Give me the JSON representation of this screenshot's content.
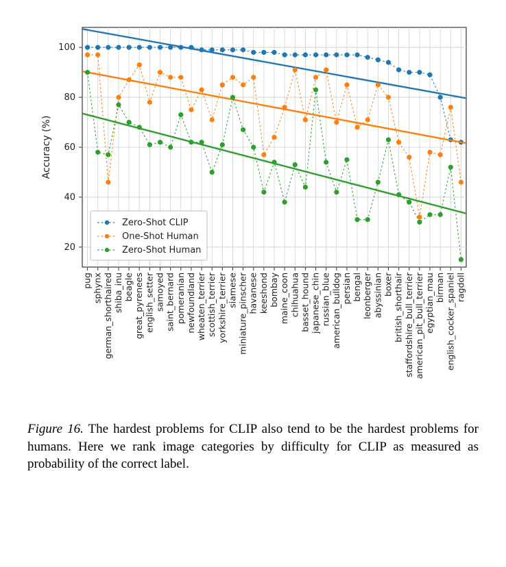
{
  "chart": {
    "type": "scatter-line",
    "ylabel": "Accuracy (%)",
    "ylabel_fontsize": 14,
    "ylim": [
      12,
      108
    ],
    "ytick_values": [
      20,
      40,
      60,
      80,
      100
    ],
    "ytick_labels": [
      "20",
      "40",
      "60",
      "80",
      "100"
    ],
    "tick_fontsize": 13,
    "xtick_fontsize": 12.5,
    "background_color": "#ffffff",
    "grid_color": "#cfcfcf",
    "spine_color": "#333333",
    "categories": [
      "pug",
      "sphynx",
      "german_shorthaired",
      "shiba_inu",
      "beagle",
      "great_pyrenees",
      "english_setter",
      "samoyed",
      "saint_bernard",
      "pomeranian",
      "newfoundland",
      "wheaten_terrier",
      "scottish_terrier",
      "yorkshire_terrier",
      "siamese",
      "miniature_pinscher",
      "havanese",
      "keeshond",
      "bombay",
      "maine_coon",
      "chihuahua",
      "basset_hound",
      "japanese_chin",
      "russian_blue",
      "american_bulldog",
      "persian",
      "bengal",
      "leonberger",
      "abyssinian",
      "boxer",
      "british_shorthair",
      "staffordshire_bull_terrier",
      "american_pit_bull_terrier",
      "egyptian_mau",
      "birman",
      "english_cocker_spaniel",
      "ragdoll"
    ],
    "series": [
      {
        "name": "Zero-Shot CLIP",
        "color": "#1f77b4",
        "marker": "circle",
        "marker_size": 3.6,
        "dashed_linewidth": 1.1,
        "trend_linewidth": 2.4,
        "values": [
          100,
          100,
          100,
          100,
          100,
          100,
          100,
          100,
          100,
          100,
          100,
          99,
          99,
          99,
          99,
          99,
          98,
          98,
          98,
          97,
          97,
          97,
          97,
          97,
          97,
          97,
          97,
          96,
          95,
          94,
          91,
          90,
          90,
          89,
          80,
          63,
          62
        ],
        "trend": {
          "y_start": 107,
          "y_end": 80
        }
      },
      {
        "name": "One-Shot Human",
        "color": "#ff7f0e",
        "marker": "circle",
        "marker_size": 3.6,
        "dashed_linewidth": 1.1,
        "trend_linewidth": 2.4,
        "values": [
          97,
          97,
          46,
          80,
          87,
          93,
          78,
          90,
          88,
          88,
          75,
          83,
          71,
          85,
          88,
          85,
          88,
          57,
          64,
          76,
          91,
          71,
          88,
          91,
          70,
          85,
          68,
          71,
          85,
          80,
          62,
          56,
          32,
          58,
          57,
          76,
          46
        ],
        "trend": {
          "y_start": 90,
          "y_end": 62
        }
      },
      {
        "name": "Zero-Shot Human",
        "color": "#2ca02c",
        "marker": "circle",
        "marker_size": 3.6,
        "dashed_linewidth": 1.1,
        "trend_linewidth": 2.4,
        "values": [
          90,
          58,
          57,
          77,
          70,
          68,
          61,
          62,
          60,
          73,
          62,
          62,
          50,
          61,
          80,
          67,
          60,
          42,
          54,
          38,
          53,
          44,
          83,
          54,
          42,
          55,
          31,
          31,
          46,
          63,
          41,
          38,
          30,
          33,
          33,
          52,
          15
        ],
        "trend": {
          "y_start": 73,
          "y_end": 34
        }
      }
    ],
    "legend": {
      "position": "lower-left",
      "border_color": "#bfbfbf",
      "bg_color": "#ffffff",
      "fontsize": 13
    }
  },
  "caption": {
    "label": "Figure 16.",
    "text": "The hardest problems for CLIP also tend to be the hardest problems for humans. Here we rank image categories by difficulty for CLIP as measured as probability of the correct label."
  }
}
